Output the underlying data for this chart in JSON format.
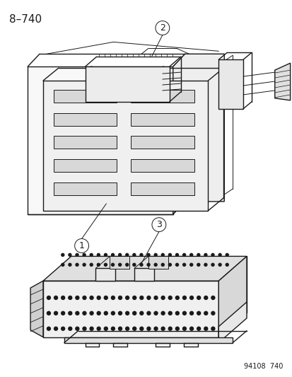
{
  "title_top_left": "8–740",
  "bottom_right_text": "94108  740",
  "bg_color": "#ffffff",
  "line_color": "#1a1a1a",
  "font_size_title": 11,
  "font_size_label": 9,
  "font_size_bottom": 7,
  "fig_width": 4.14,
  "fig_height": 5.33,
  "dpi": 100
}
